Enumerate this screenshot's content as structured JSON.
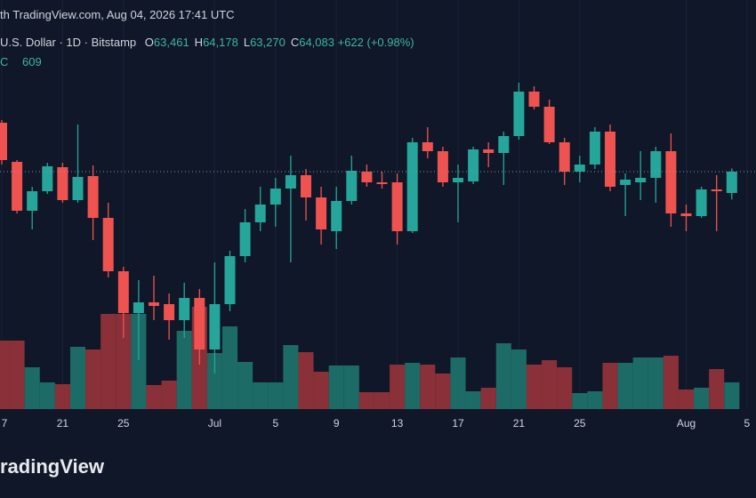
{
  "header": {
    "published": "th TradingView.com, Aug 04, 2026 17:41 UTC",
    "symbol": "U.S. Dollar · 1D · Bitstamp",
    "ohlc": [
      {
        "label": "O",
        "value": "63,461"
      },
      {
        "label": "H",
        "value": "64,178"
      },
      {
        "label": "L",
        "value": "63,270"
      },
      {
        "label": "C",
        "value": "64,083"
      }
    ],
    "change": "+622 (+0.98%)",
    "indicator_label": "C",
    "indicator_value": "609"
  },
  "footer": {
    "logo": "radingView"
  },
  "chart_data": {
    "type": "candlestick",
    "categories": [
      "7",
      null,
      null,
      null,
      "21",
      null,
      null,
      null,
      "25",
      null,
      null,
      null,
      null,
      null,
      "Jul",
      null,
      null,
      null,
      "5",
      null,
      null,
      null,
      "9",
      null,
      null,
      null,
      "13",
      null,
      null,
      null,
      "17",
      null,
      null,
      null,
      "21",
      null,
      null,
      null,
      "25",
      null,
      null,
      null,
      null,
      null,
      null,
      "Aug",
      null,
      null,
      null,
      "5"
    ],
    "open": [
      65508,
      64368,
      62944,
      63513,
      64213,
      63254,
      63954,
      62736,
      61182,
      59965,
      60276,
      60224,
      59758,
      60405,
      58903,
      60224,
      61623,
      62607,
      63125,
      63591,
      63980,
      63332,
      62348,
      63229,
      64083,
      63772,
      63772,
      62348,
      64938,
      64679,
      63772,
      63798,
      64731,
      64627,
      65119,
      66414,
      65974,
      64938,
      64083,
      64290,
      65249,
      63695,
      63772,
      63902,
      64679,
      62866,
      62788,
      63565,
      63461,
      null
    ],
    "high": [
      65586,
      64420,
      63643,
      64342,
      64342,
      65456,
      64265,
      63177,
      61312,
      60923,
      61053,
      60535,
      60846,
      60664,
      61441,
      61778,
      62995,
      63643,
      63902,
      64549,
      64161,
      63643,
      63643,
      64549,
      64290,
      64083,
      64031,
      65067,
      65378,
      64808,
      64290,
      64808,
      64938,
      65249,
      66673,
      66570,
      66181,
      65067,
      64549,
      65378,
      65456,
      64031,
      64679,
      64808,
      65197,
      63125,
      63643,
      63980,
      64178,
      null
    ],
    "low": [
      64290,
      62866,
      62400,
      63436,
      63177,
      63177,
      62089,
      61001,
      59240,
      58592,
      59758,
      59188,
      59240,
      58463,
      58204,
      60017,
      61441,
      62348,
      62477,
      61441,
      62659,
      61959,
      61830,
      63125,
      63643,
      63591,
      61959,
      62296,
      64472,
      63643,
      62607,
      63721,
      64213,
      63695,
      65016,
      65896,
      64886,
      63695,
      63772,
      64161,
      63513,
      62788,
      63254,
      63177,
      62477,
      62348,
      62736,
      62348,
      63270,
      null
    ],
    "close": [
      64420,
      62944,
      63513,
      64239,
      63254,
      63928,
      62736,
      61182,
      59965,
      60276,
      60172,
      59758,
      60405,
      58903,
      60224,
      61623,
      62607,
      63125,
      63591,
      63980,
      63332,
      62400,
      63229,
      64109,
      63772,
      63721,
      62348,
      64938,
      64679,
      63772,
      63902,
      64731,
      64627,
      65119,
      66414,
      65974,
      64938,
      64083,
      64290,
      65249,
      63643,
      63850,
      63902,
      64679,
      62866,
      62788,
      63565,
      63513,
      64083,
      null
    ],
    "volume": [
      77,
      77,
      47,
      30,
      28,
      70,
      67,
      107,
      107,
      107,
      27,
      32,
      88,
      115,
      63,
      93,
      53,
      30,
      30,
      72,
      64,
      42,
      49,
      49,
      19,
      19,
      50,
      52,
      50,
      40,
      58,
      20,
      24,
      74,
      67,
      50,
      55,
      47,
      18,
      20,
      52,
      52,
      58,
      58,
      60,
      22,
      24,
      45,
      30,
      null
    ],
    "up_color": "#26a69a",
    "down_color": "#ef5350",
    "up_volume_color": "#1d6b66",
    "down_volume_color": "#8a3038",
    "ylim": [
      57168,
      69082
    ],
    "vlim": [
      0,
      300
    ],
    "grid": true,
    "last_price_line": true
  }
}
